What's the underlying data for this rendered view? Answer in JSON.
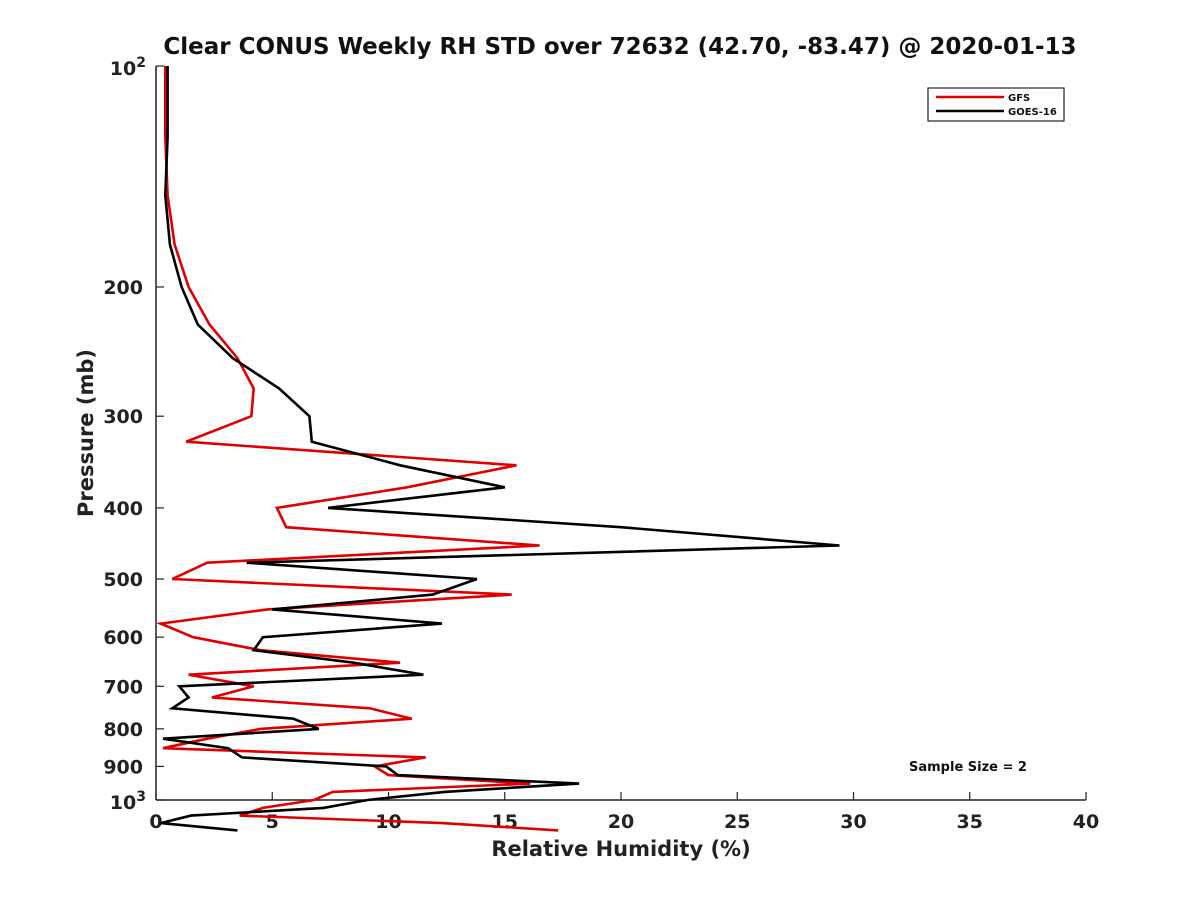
{
  "chart_data": {
    "type": "line",
    "title": "Clear CONUS Weekly RH STD over 72632 (42.70, -83.47) @ 2020-01-13",
    "xlabel": "Relative Humidity (%)",
    "ylabel": "Pressure (mb)",
    "xlim": [
      0,
      40
    ],
    "ylim": [
      100,
      1000
    ],
    "y_scale": "log",
    "y_reversed": true,
    "grid": false,
    "legend_position": "top-right",
    "x_ticks": [
      {
        "value": 0,
        "label": "0"
      },
      {
        "value": 5,
        "label": "5"
      },
      {
        "value": 10,
        "label": "10"
      },
      {
        "value": 15,
        "label": "15"
      },
      {
        "value": 20,
        "label": "20"
      },
      {
        "value": 25,
        "label": "25"
      },
      {
        "value": 30,
        "label": "30"
      },
      {
        "value": 35,
        "label": "35"
      },
      {
        "value": 40,
        "label": "40"
      }
    ],
    "y_ticks": [
      {
        "value": 100,
        "base": "10",
        "exp": "2"
      },
      {
        "value": 200,
        "label": "200"
      },
      {
        "value": 300,
        "label": "300"
      },
      {
        "value": 400,
        "label": "400"
      },
      {
        "value": 500,
        "label": "500"
      },
      {
        "value": 600,
        "label": "600"
      },
      {
        "value": 700,
        "label": "700"
      },
      {
        "value": 800,
        "label": "800"
      },
      {
        "value": 900,
        "label": "900"
      },
      {
        "value": 1000,
        "base": "10",
        "exp": "3"
      }
    ],
    "annotation": "Sample Size = 2",
    "series": [
      {
        "name": "GFS",
        "color": "#e00000",
        "points": [
          [
            0.4,
            100
          ],
          [
            0.4,
            125
          ],
          [
            0.5,
            150
          ],
          [
            0.8,
            175
          ],
          [
            1.4,
            200
          ],
          [
            2.3,
            225
          ],
          [
            3.5,
            250
          ],
          [
            4.2,
            275
          ],
          [
            4.1,
            300
          ],
          [
            1.3,
            325
          ],
          [
            15.5,
            350
          ],
          [
            10.8,
            375
          ],
          [
            5.2,
            400
          ],
          [
            5.6,
            425
          ],
          [
            16.5,
            450
          ],
          [
            2.2,
            475
          ],
          [
            0.7,
            500
          ],
          [
            15.3,
            525
          ],
          [
            4.8,
            550
          ],
          [
            0.2,
            575
          ],
          [
            1.6,
            600
          ],
          [
            4.5,
            625
          ],
          [
            10.5,
            650
          ],
          [
            1.4,
            675
          ],
          [
            4.2,
            700
          ],
          [
            2.4,
            725
          ],
          [
            9.2,
            750
          ],
          [
            11.0,
            775
          ],
          [
            4.5,
            800
          ],
          [
            2.2,
            825
          ],
          [
            0.3,
            850
          ],
          [
            11.6,
            875
          ],
          [
            9.4,
            900
          ],
          [
            10.0,
            925
          ],
          [
            16.1,
            950
          ],
          [
            7.6,
            975
          ],
          [
            6.8,
            1000
          ],
          [
            4.6,
            1025
          ],
          [
            3.6,
            1050
          ],
          [
            12.3,
            1075
          ],
          [
            17.3,
            1100
          ]
        ]
      },
      {
        "name": "GOES-16",
        "color": "#000000",
        "points": [
          [
            0.5,
            100
          ],
          [
            0.5,
            125
          ],
          [
            0.4,
            150
          ],
          [
            0.6,
            175
          ],
          [
            1.1,
            200
          ],
          [
            1.8,
            225
          ],
          [
            3.3,
            250
          ],
          [
            5.3,
            275
          ],
          [
            6.6,
            300
          ],
          [
            6.7,
            325
          ],
          [
            10.5,
            350
          ],
          [
            15.0,
            375
          ],
          [
            7.4,
            400
          ],
          [
            20.0,
            425
          ],
          [
            29.4,
            450
          ],
          [
            3.9,
            475
          ],
          [
            13.8,
            500
          ],
          [
            11.9,
            525
          ],
          [
            5.0,
            550
          ],
          [
            12.3,
            575
          ],
          [
            4.6,
            600
          ],
          [
            4.2,
            625
          ],
          [
            8.5,
            650
          ],
          [
            11.5,
            675
          ],
          [
            1.0,
            700
          ],
          [
            1.4,
            725
          ],
          [
            0.7,
            750
          ],
          [
            5.9,
            775
          ],
          [
            7.0,
            800
          ],
          [
            0.3,
            825
          ],
          [
            3.1,
            850
          ],
          [
            3.7,
            875
          ],
          [
            9.9,
            900
          ],
          [
            10.4,
            925
          ],
          [
            18.2,
            950
          ],
          [
            12.4,
            975
          ],
          [
            9.1,
            1000
          ],
          [
            7.2,
            1025
          ],
          [
            1.5,
            1050
          ],
          [
            0.2,
            1075
          ],
          [
            3.5,
            1100
          ]
        ]
      }
    ]
  }
}
